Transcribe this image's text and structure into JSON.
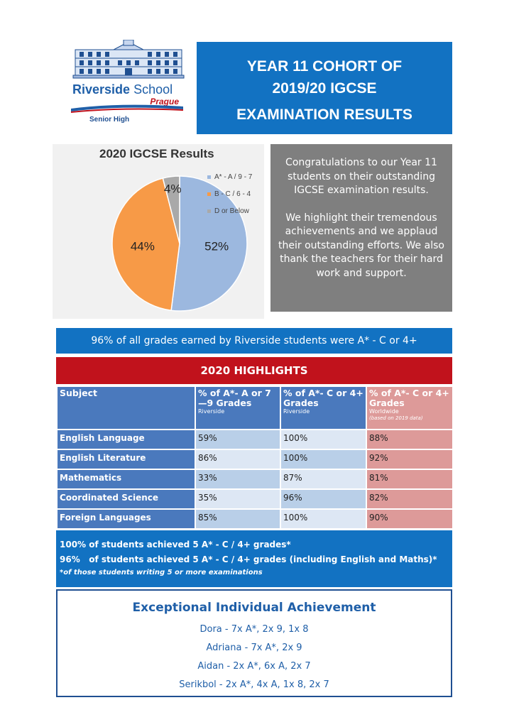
{
  "logo": {
    "school_name_bold": "Riverside",
    "school_name_light": "School",
    "city": "Prague",
    "division": "Senior High",
    "icon": "school-building-illustration"
  },
  "title": [
    "YEAR 11 COHORT OF",
    "2019/20 IGCSE",
    "EXAMINATION RESULTS"
  ],
  "chart_data": {
    "type": "pie",
    "title": "2020 IGCSE Results",
    "categories": [
      "A* - A / 9 - 7",
      "B - C / 6 - 4",
      "D or Below"
    ],
    "values": [
      52,
      44,
      4
    ],
    "data_labels": [
      "52%",
      "44%",
      "4%"
    ],
    "colors": [
      "#9cb8df",
      "#f79a47",
      "#a9a9a9"
    ],
    "legend_position": "right"
  },
  "congrats": {
    "paragraph1": "Congratulations to our Year 11 students on their outstanding IGCSE examination results.",
    "paragraph2": "We highlight their tremendous achievements and we applaud their outstanding efforts.  We also thank the teachers for their hard work and support."
  },
  "banner": "96% of all grades earned by Riverside students were A* - C or 4+",
  "highlights": {
    "title": "2020 HIGHLIGHTS",
    "headers": {
      "subject": "Subject",
      "col1": "% of A*- A or 7—9 Grades",
      "col1_sub": "Riverside",
      "col2": "% of A*- C or 4+ Grades",
      "col2_sub": "Riverside",
      "col3": "% of A*- C  or 4+ Grades",
      "col3_sub": "Worldwide",
      "col3_note": "(based on 2019 data)"
    },
    "rows": [
      {
        "subject": "English Language",
        "a_a": "59%",
        "a_c": "100%",
        "world": "88%"
      },
      {
        "subject": "English Literature",
        "a_a": "86%",
        "a_c": "100%",
        "world": "92%"
      },
      {
        "subject": "Mathematics",
        "a_a": "33%",
        "a_c": "87%",
        "world": "81%"
      },
      {
        "subject": "Coordinated Science",
        "a_a": "35%",
        "a_c": "96%",
        "world": "82%"
      },
      {
        "subject": "Foreign Languages",
        "a_a": "85%",
        "a_c": "100%",
        "world": "90%"
      }
    ]
  },
  "achievements": {
    "line1": "100% of students achieved 5 A* - C / 4+ grades*",
    "line2": "96%   of students achieved 5 A* - C / 4+ grades (including English and Maths)*",
    "note": "*of those students writing 5 or more examinations"
  },
  "exceptional": {
    "title": "Exceptional Individual Achievement",
    "students": [
      "Dora - 7x A*, 2x 9, 1x 8",
      "Adriana - 7x A*, 2x 9",
      "Aidan - 2x A*, 6x A, 2x 7",
      "Serikbol - 2x A*, 4x A, 1x 8, 2x 7"
    ]
  }
}
